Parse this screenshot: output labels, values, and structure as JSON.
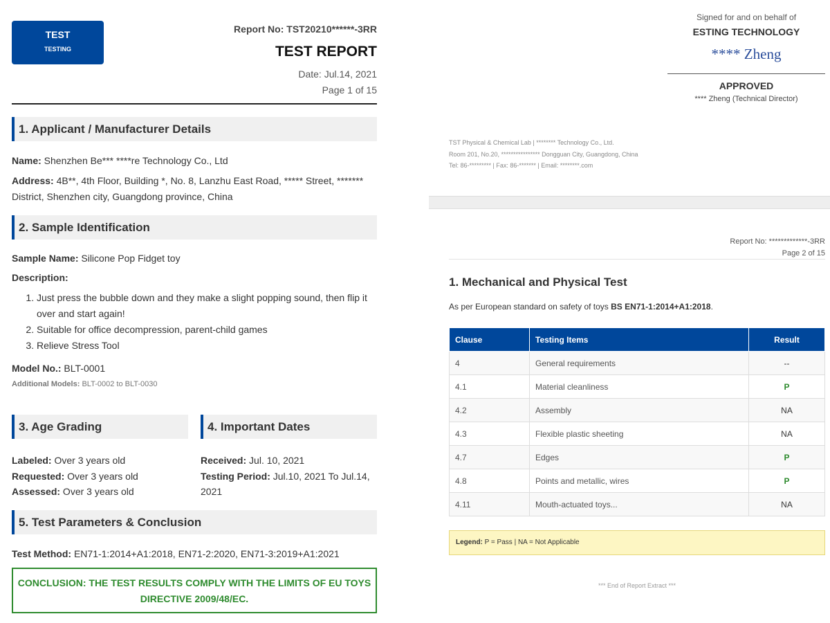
{
  "page1": {
    "logo": {
      "line1": "TEST",
      "line2": "TESTING"
    },
    "report_no": "Report No: TST20210******-3RR",
    "title": "TEST REPORT",
    "date": "Date: Jul.14, 2021",
    "page": "Page 1 of 15",
    "sec1": {
      "title": "1. Applicant / Manufacturer Details",
      "name_label": "Name:",
      "name": " Shenzhen Be*** ****re Technology Co., Ltd",
      "address_label": "Address:",
      "address": " 4B**, 4th Floor, Building *, No. 8, Lanzhu East Road, ***** Street, ******* District, Shenzhen city, Guangdong province, China"
    },
    "sec2": {
      "title": "2. Sample Identification",
      "sample_label": "Sample Name:",
      "sample": " Silicone Pop Fidget toy",
      "desc_label": "Description:",
      "desc": [
        "Just press the bubble down and they make a slight popping sound, then flip it over and start again!",
        "Suitable for office decompression, parent-child games",
        "Relieve Stress Tool"
      ],
      "model_label": "Model No.:",
      "model": " BLT-0001",
      "add_label": "Additional Models:",
      "add": " BLT-0002 to BLT-0030"
    },
    "sec3": {
      "title": "3. Age Grading",
      "labeled_label": "Labeled:",
      "labeled": " Over 3 years old",
      "requested_label": "Requested:",
      "requested": " Over 3 years old",
      "assessed_label": "Assessed:",
      "assessed": " Over 3 years old"
    },
    "sec4": {
      "title": "4. Important Dates",
      "received_label": "Received:",
      "received": " Jul. 10, 2021",
      "period_label": "Testing Period:",
      "period": " Jul.10, 2021 To Jul.14, 2021"
    },
    "sec5": {
      "title": "5. Test Parameters & Conclusion",
      "method_label": "Test Method:",
      "method": " EN71-1:2014+A1:2018, EN71-2:2020, EN71-3:2019+A1:2021",
      "conclusion": "CONCLUSION: THE TEST RESULTS COMPLY WITH THE LIMITS OF EU TOYS DIRECTIVE 2009/48/EC."
    }
  },
  "signature": {
    "signed_for": "Signed for and on behalf of",
    "company": "ESTING TECHNOLOGY",
    "signature": "**** Zheng",
    "approved": "APPROVED",
    "signer": "**** Zheng (Technical Director)"
  },
  "footer": [
    "TST Physical & Chemical Lab | ******** Technology Co., Ltd.",
    "Room 201, No.20, **************** Dongguan City, Guangdong, China",
    "Tel: 86-********* | Fax: 86-******* | Email: ********.com"
  ],
  "page2": {
    "report_no": "Report No: *************-3RR",
    "page": "Page 2 of 15",
    "title": "1. Mechanical and Physical Test",
    "intro": "As per European standard on safety of toys ",
    "intro_std": "BS EN71-1:2014+A1:2018",
    "intro_end": ".",
    "headers": [
      "Clause",
      "Testing Items",
      "Result"
    ],
    "rows": [
      [
        "4",
        "General requirements",
        "--"
      ],
      [
        "4.1",
        "Material cleanliness",
        "P"
      ],
      [
        "4.2",
        "Assembly",
        "NA"
      ],
      [
        "4.3",
        "Flexible plastic sheeting",
        "NA"
      ],
      [
        "4.7",
        "Edges",
        "P"
      ],
      [
        "4.8",
        "Points and metallic, wires",
        "P"
      ],
      [
        "4.11",
        "Mouth-actuated toys...",
        "NA"
      ]
    ],
    "legend_label": "Legend:",
    "legend": " P = Pass | NA = Not Applicable",
    "end": "*** End of Report Extract ***"
  },
  "colors": {
    "brand": "#00479b",
    "pass": "#2e8b2e"
  }
}
